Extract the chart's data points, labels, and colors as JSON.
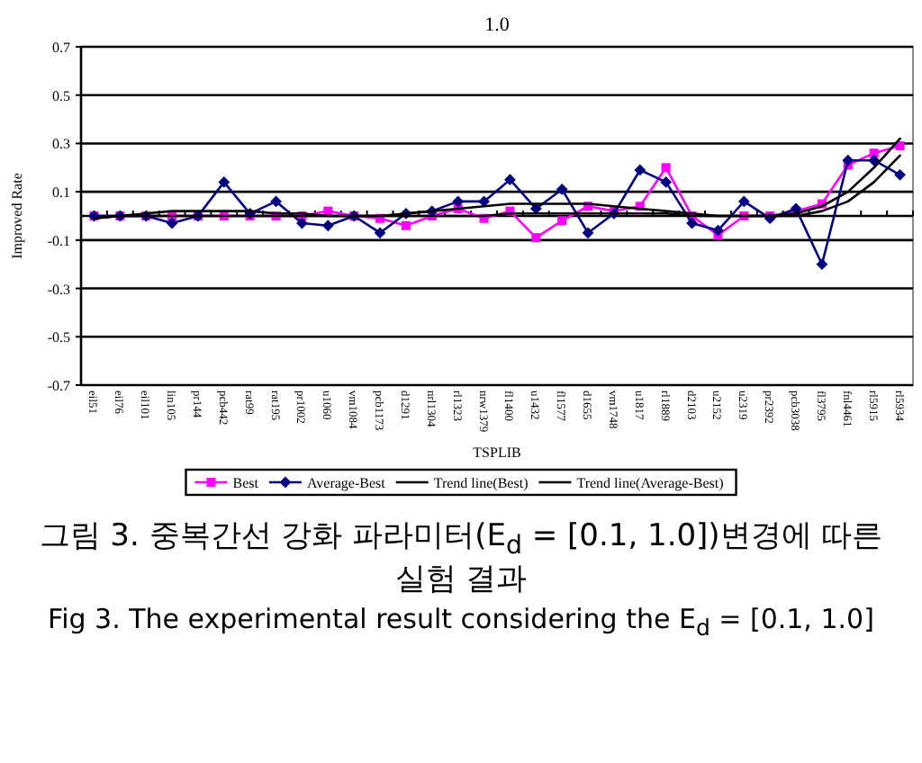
{
  "chart_data": {
    "type": "line",
    "title": "1.0",
    "xlabel": "TSPLIB",
    "ylabel": "Improved Rate",
    "categories": [
      "eil51",
      "eil76",
      "eil101",
      "lin105",
      "pr144",
      "pcb442",
      "rat99",
      "rat195",
      "pr1002",
      "u1060",
      "vm1084",
      "pcb1173",
      "d1291",
      "nrl1304",
      "rl1323",
      "nrw1379",
      "fl1400",
      "u1432",
      "fl1577",
      "d1655",
      "vm1748",
      "u1817",
      "rl1889",
      "d2103",
      "u2152",
      "u2319",
      "pr2392",
      "pcb3038",
      "fl3795",
      "fnl4461",
      "rl5915",
      "rl5934"
    ],
    "series": [
      {
        "name": "Best",
        "color": "#ff00ff",
        "marker": "square",
        "values": [
          0,
          0,
          0,
          0,
          0,
          0,
          0,
          0,
          0,
          0.02,
          0,
          -0.01,
          -0.04,
          0.0,
          0.03,
          -0.01,
          0.02,
          -0.09,
          -0.02,
          0.04,
          0.02,
          0.04,
          0.2,
          0.0,
          -0.08,
          0,
          0,
          0.02,
          0.05,
          0.21,
          0.26,
          0.29
        ]
      },
      {
        "name": "Average-Best",
        "color": "#000080",
        "marker": "diamond",
        "values": [
          0,
          0,
          0,
          -0.03,
          0,
          0.14,
          0.01,
          0.06,
          -0.03,
          -0.04,
          0,
          -0.07,
          0.01,
          0.02,
          0.06,
          0.06,
          0.15,
          0.03,
          0.11,
          -0.07,
          0.01,
          0.19,
          0.14,
          -0.03,
          -0.06,
          0.06,
          -0.01,
          0.03,
          -0.2,
          0.23,
          0.23,
          0.17
        ]
      },
      {
        "name": "Trend line(Best)",
        "color": "#000000",
        "marker": "none",
        "values": [
          -0.01,
          0,
          0,
          0,
          0,
          0,
          0,
          0,
          0,
          0,
          0,
          0,
          0,
          0,
          0,
          0,
          0.01,
          0.01,
          0.01,
          0.01,
          0.01,
          0.01,
          0.01,
          0,
          0,
          0,
          0,
          0,
          0.02,
          0.06,
          0.14,
          0.25
        ]
      },
      {
        "name": "Trend line(Average-Best)",
        "color": "#000000",
        "marker": "none",
        "values": [
          -0.01,
          0,
          0.01,
          0.02,
          0.02,
          0.02,
          0.02,
          0.01,
          0.01,
          0,
          0,
          0,
          0.01,
          0.02,
          0.03,
          0.04,
          0.05,
          0.05,
          0.05,
          0.05,
          0.04,
          0.03,
          0.02,
          0.01,
          0,
          0,
          0,
          0.01,
          0.04,
          0.1,
          0.2,
          0.32
        ]
      }
    ],
    "ylim": [
      -0.7,
      0.7
    ],
    "yticks": [
      -0.7,
      -0.5,
      -0.3,
      -0.1,
      0.1,
      0.3,
      0.5,
      0.7
    ],
    "grid": "y",
    "legend": "bottom",
    "line_style": "solid",
    "annotations": [
      "그림 3. 중복간선 강화 파라미터(E$_{d}$ = [0.1, 1.0])변경에 따른 실험 결과",
      "Fig 3. The experimental result considering the E$_{d}$ = [0.1, 1.0]"
    ]
  }
}
